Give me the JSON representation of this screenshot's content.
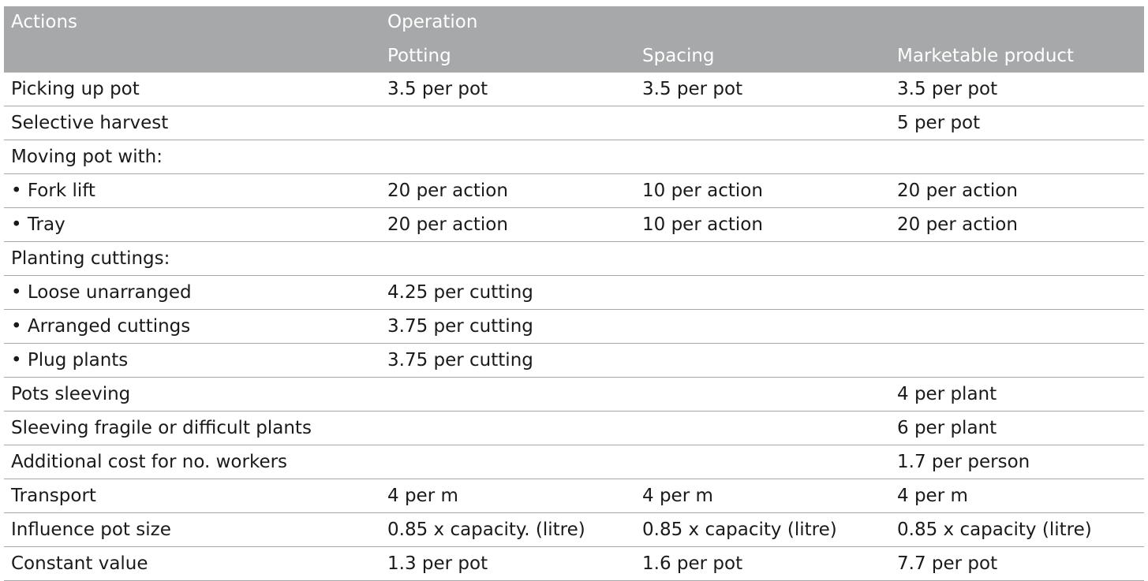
{
  "header": {
    "actions": "Actions",
    "operation": "Operation",
    "potting": "Potting",
    "spacing": "Spacing",
    "marketable": "Marketable product"
  },
  "rows": [
    {
      "action": "Picking up pot",
      "potting": "3.5 per pot",
      "spacing": "3.5 per pot",
      "marketable": "3.5 per pot"
    },
    {
      "action": "Selective harvest",
      "potting": "",
      "spacing": "",
      "marketable": "5 per pot"
    },
    {
      "action": "Moving pot with:",
      "potting": "",
      "spacing": "",
      "marketable": ""
    },
    {
      "action": "• Fork lift",
      "potting": "20 per action",
      "spacing": "10 per action",
      "marketable": "20 per action"
    },
    {
      "action": "• Tray",
      "potting": "20 per action",
      "spacing": "10 per action",
      "marketable": "20 per action"
    },
    {
      "action": "Planting cuttings:",
      "potting": "",
      "spacing": "",
      "marketable": ""
    },
    {
      "action": "• Loose unarranged",
      "potting": "4.25 per cutting",
      "spacing": "",
      "marketable": ""
    },
    {
      "action": "• Arranged cuttings",
      "potting": "3.75 per cutting",
      "spacing": "",
      "marketable": ""
    },
    {
      "action": "• Plug plants",
      "potting": "3.75 per cutting",
      "spacing": "",
      "marketable": ""
    },
    {
      "action": "Pots sleeving",
      "potting": "",
      "spacing": "",
      "marketable": "4 per plant"
    },
    {
      "action": "Sleeving fragile or difficult plants",
      "potting": "",
      "spacing": "",
      "marketable": "6 per plant"
    },
    {
      "action": "Additional cost for no. workers",
      "potting": "",
      "spacing": "",
      "marketable": "1.7 per person"
    },
    {
      "action": "Transport",
      "potting": "4 per m",
      "spacing": "4 per m",
      "marketable": "4 per m"
    },
    {
      "action": "Influence pot size",
      "potting": "0.85 x capacity. (litre)",
      "spacing": "0.85 x capacity (litre)",
      "marketable": "0.85 x capacity (litre)"
    },
    {
      "action": "Constant value",
      "potting": "1.3 per pot",
      "spacing": "1.6 per pot",
      "marketable": "7.7 per pot"
    }
  ],
  "colors": {
    "header_bg": "#a6a8a9",
    "header_text": "#ffffff",
    "rule": "#a6a8a9",
    "body_text": "#1a1a1a"
  }
}
